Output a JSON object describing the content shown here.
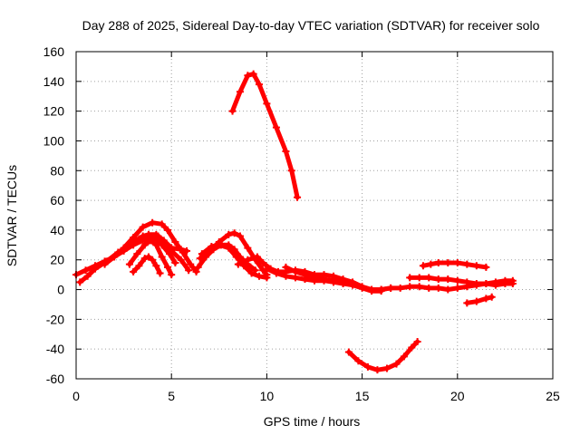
{
  "chart_data": {
    "type": "scatter",
    "title": "Day 288 of 2025, Sidereal Day-to-day VTEC variation (SDTVAR) for receiver solo",
    "xlabel": "GPS time / hours",
    "ylabel": "SDTVAR / TECUs",
    "xlim": [
      0,
      25
    ],
    "ylim": [
      -60,
      160
    ],
    "xticks": [
      0,
      5,
      10,
      15,
      20,
      25
    ],
    "yticks": [
      -60,
      -40,
      -20,
      0,
      20,
      40,
      60,
      80,
      100,
      120,
      140,
      160
    ],
    "grid": true,
    "marker": "plus",
    "color": "#ff0000",
    "series": [
      {
        "name": "arc1",
        "points": [
          [
            0.0,
            10
          ],
          [
            0.5,
            13
          ],
          [
            1.0,
            16
          ],
          [
            1.5,
            19
          ],
          [
            2.0,
            22
          ],
          [
            2.5,
            26
          ],
          [
            3.0,
            30
          ],
          [
            3.5,
            33
          ],
          [
            4.0,
            36
          ],
          [
            4.3,
            36
          ],
          [
            4.6,
            33
          ],
          [
            5.0,
            28
          ],
          [
            5.5,
            27
          ],
          [
            5.8,
            26
          ]
        ]
      },
      {
        "name": "arc2",
        "points": [
          [
            0.2,
            5
          ],
          [
            0.6,
            9
          ],
          [
            1.0,
            14
          ],
          [
            1.6,
            19
          ],
          [
            2.2,
            25
          ],
          [
            2.8,
            30
          ],
          [
            3.3,
            34
          ],
          [
            3.8,
            37
          ],
          [
            4.2,
            37
          ],
          [
            4.6,
            32
          ],
          [
            5.0,
            26
          ],
          [
            5.5,
            20
          ],
          [
            5.9,
            13
          ]
        ]
      },
      {
        "name": "arc3",
        "points": [
          [
            2.5,
            28
          ],
          [
            3.0,
            35
          ],
          [
            3.5,
            42
          ],
          [
            4.0,
            45
          ],
          [
            4.5,
            44
          ],
          [
            4.8,
            40
          ],
          [
            5.2,
            32
          ],
          [
            5.6,
            25
          ],
          [
            6.0,
            17
          ],
          [
            6.3,
            12
          ]
        ]
      },
      {
        "name": "arc4",
        "points": [
          [
            2.8,
            17
          ],
          [
            3.2,
            24
          ],
          [
            3.6,
            30
          ],
          [
            3.9,
            33
          ],
          [
            4.2,
            30
          ],
          [
            4.5,
            22
          ],
          [
            4.8,
            15
          ],
          [
            5.0,
            10
          ]
        ]
      },
      {
        "name": "arc5",
        "points": [
          [
            3.0,
            12
          ],
          [
            3.3,
            16
          ],
          [
            3.6,
            21
          ],
          [
            3.8,
            22
          ],
          [
            4.0,
            20
          ],
          [
            4.2,
            16
          ],
          [
            4.4,
            11
          ]
        ]
      },
      {
        "name": "arc6",
        "points": [
          [
            1.5,
            17
          ],
          [
            2.0,
            22
          ],
          [
            2.5,
            27
          ],
          [
            3.0,
            32
          ],
          [
            3.5,
            36
          ],
          [
            3.8,
            37
          ],
          [
            4.1,
            35
          ],
          [
            4.5,
            30
          ],
          [
            4.9,
            24
          ],
          [
            5.2,
            18
          ]
        ]
      },
      {
        "name": "arc7",
        "points": [
          [
            6.4,
            15
          ],
          [
            6.8,
            22
          ],
          [
            7.2,
            27
          ],
          [
            7.6,
            30
          ],
          [
            8.0,
            30
          ],
          [
            8.3,
            27
          ],
          [
            8.6,
            22
          ],
          [
            9.0,
            17
          ],
          [
            9.4,
            13
          ]
        ]
      },
      {
        "name": "arc8",
        "points": [
          [
            6.5,
            21
          ],
          [
            7.0,
            26
          ],
          [
            7.5,
            32
          ],
          [
            8.0,
            37
          ],
          [
            8.3,
            38
          ],
          [
            8.6,
            36
          ],
          [
            9.0,
            28
          ],
          [
            9.4,
            20
          ],
          [
            9.8,
            13
          ],
          [
            10.0,
            10
          ]
        ]
      },
      {
        "name": "arc9",
        "points": [
          [
            6.6,
            24
          ],
          [
            7.1,
            29
          ],
          [
            7.5,
            30
          ],
          [
            8.0,
            28
          ],
          [
            8.4,
            22
          ],
          [
            8.8,
            16
          ],
          [
            9.2,
            11
          ],
          [
            9.6,
            9
          ],
          [
            10.0,
            8
          ]
        ]
      },
      {
        "name": "arc10",
        "points": [
          [
            8.5,
            17
          ],
          [
            9.0,
            20
          ],
          [
            9.5,
            22
          ],
          [
            9.8,
            18
          ],
          [
            10.2,
            14
          ],
          [
            10.6,
            12
          ],
          [
            11.0,
            12
          ],
          [
            11.5,
            13
          ],
          [
            12.0,
            12
          ],
          [
            12.5,
            10
          ],
          [
            13.0,
            10
          ],
          [
            13.5,
            9
          ],
          [
            14.0,
            7
          ],
          [
            14.5,
            5
          ],
          [
            15.0,
            2
          ],
          [
            15.5,
            0
          ],
          [
            16.0,
            0
          ],
          [
            16.5,
            1
          ]
        ]
      },
      {
        "name": "arc11",
        "points": [
          [
            10.0,
            14
          ],
          [
            10.5,
            11
          ],
          [
            11.0,
            9
          ],
          [
            11.5,
            8
          ],
          [
            12.0,
            7
          ],
          [
            12.5,
            6
          ],
          [
            13.0,
            6
          ],
          [
            13.5,
            5
          ],
          [
            14.0,
            4
          ],
          [
            14.5,
            3
          ],
          [
            15.0,
            1
          ],
          [
            15.5,
            -1
          ],
          [
            16.0,
            -1
          ]
        ]
      },
      {
        "name": "arc12",
        "points": [
          [
            11.0,
            15
          ],
          [
            11.5,
            12
          ],
          [
            12.0,
            10
          ],
          [
            12.5,
            8
          ],
          [
            13.0,
            7
          ],
          [
            13.5,
            6
          ],
          [
            14.0,
            5
          ]
        ]
      },
      {
        "name": "arc13",
        "points": [
          [
            16.0,
            0
          ],
          [
            16.5,
            1
          ],
          [
            17.0,
            1
          ],
          [
            17.5,
            2
          ],
          [
            18.0,
            2
          ],
          [
            18.5,
            1
          ],
          [
            19.0,
            1
          ],
          [
            19.5,
            0
          ],
          [
            20.0,
            1
          ],
          [
            20.5,
            2
          ],
          [
            21.0,
            3
          ],
          [
            21.5,
            4
          ],
          [
            22.0,
            5
          ],
          [
            22.5,
            6
          ],
          [
            22.9,
            6
          ]
        ]
      },
      {
        "name": "arc14",
        "points": [
          [
            8.2,
            120
          ],
          [
            8.6,
            133
          ],
          [
            9.0,
            144
          ],
          [
            9.3,
            145
          ],
          [
            9.6,
            138
          ],
          [
            10.0,
            125
          ],
          [
            10.5,
            109
          ],
          [
            11.0,
            93
          ],
          [
            11.3,
            80
          ],
          [
            11.6,
            62
          ]
        ]
      },
      {
        "name": "arc15",
        "points": [
          [
            18.2,
            16
          ],
          [
            18.6,
            17
          ],
          [
            19.0,
            18
          ],
          [
            19.5,
            18
          ],
          [
            20.0,
            18
          ],
          [
            20.5,
            17
          ],
          [
            21.0,
            16
          ],
          [
            21.5,
            15
          ]
        ]
      },
      {
        "name": "arc16",
        "points": [
          [
            17.5,
            8
          ],
          [
            18.0,
            8
          ],
          [
            18.5,
            8
          ],
          [
            19.0,
            7
          ],
          [
            19.5,
            7
          ],
          [
            20.0,
            6
          ],
          [
            20.5,
            5
          ],
          [
            21.0,
            4
          ],
          [
            21.5,
            4
          ],
          [
            22.0,
            3
          ],
          [
            22.5,
            4
          ],
          [
            22.9,
            4
          ]
        ]
      },
      {
        "name": "arc17",
        "points": [
          [
            20.5,
            -9
          ],
          [
            21.0,
            -8
          ],
          [
            21.5,
            -6
          ],
          [
            21.8,
            -5
          ]
        ]
      },
      {
        "name": "arc18",
        "points": [
          [
            14.3,
            -42
          ],
          [
            14.8,
            -48
          ],
          [
            15.3,
            -52
          ],
          [
            15.8,
            -54
          ],
          [
            16.3,
            -53
          ],
          [
            16.8,
            -50
          ],
          [
            17.2,
            -45
          ],
          [
            17.6,
            -39
          ],
          [
            17.9,
            -35
          ]
        ]
      }
    ]
  }
}
